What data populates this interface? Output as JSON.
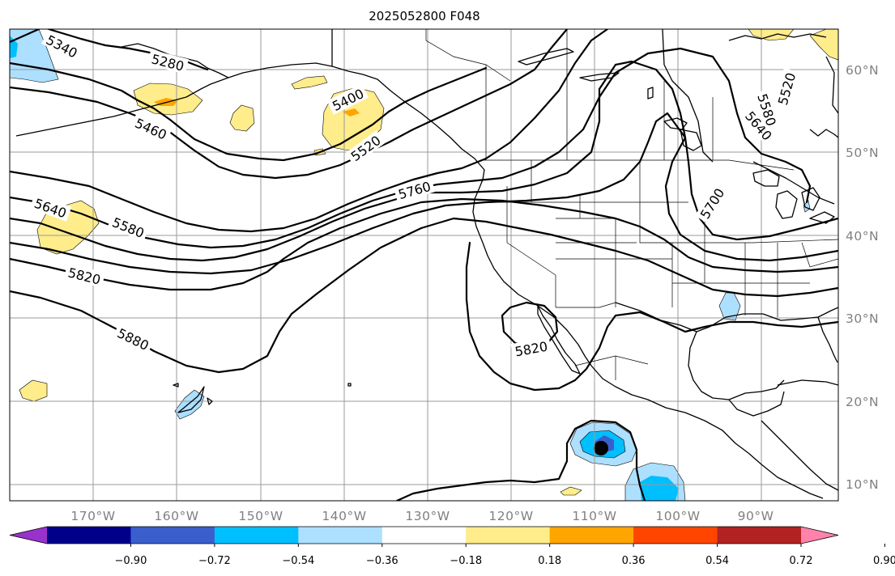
{
  "map": {
    "title": "2025052800 F048",
    "lon_ticks": [
      "170°W",
      "160°W",
      "150°W",
      "140°W",
      "130°W",
      "120°W",
      "110°W",
      "100°W",
      "90°W"
    ],
    "lat_ticks": [
      "60°N",
      "50°N",
      "40°N",
      "30°N",
      "20°N",
      "10°N"
    ],
    "extent": {
      "lon_min": -180,
      "lon_max": -80,
      "lat_min": 8,
      "lat_max": 65
    },
    "contour_labels": [
      "5340",
      "5280",
      "5460",
      "5400",
      "5520",
      "5760",
      "5640",
      "5580",
      "5820",
      "5880",
      "5820",
      "5700",
      "5640",
      "5580",
      "5520"
    ],
    "colorbar": {
      "ticks": [
        "−0.90",
        "−0.72",
        "−0.54",
        "−0.36",
        "−0.18",
        "0.18",
        "0.36",
        "0.54",
        "0.72",
        "0.90"
      ],
      "colors": [
        "#9932CC",
        "#00008B",
        "#3A5FCD",
        "#00BFFF",
        "#ADDFFF",
        "#FFFFFF",
        "#FFEC8B",
        "#FFA500",
        "#FF4500",
        "#B22222",
        "#FF82AB"
      ]
    }
  }
}
